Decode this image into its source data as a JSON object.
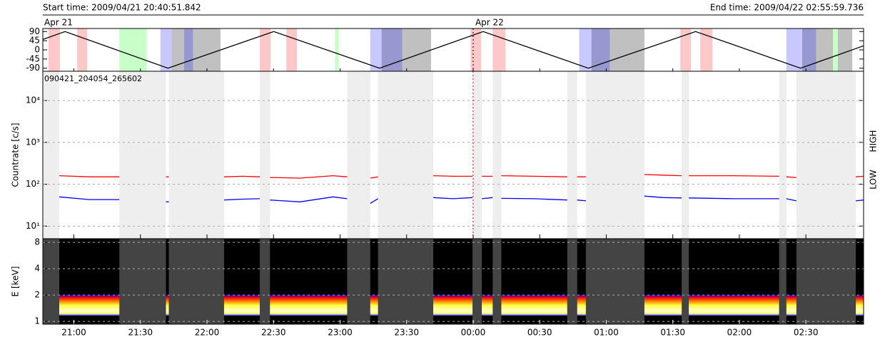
{
  "header": {
    "start": "Start time: 2009/04/21 20:40:51.842",
    "end": "End time: 2009/04/22 02:55:59.736"
  },
  "chart_data": [
    {
      "type": "line",
      "xlim": [
        1246,
        1616
      ],
      "ylim": [
        -105,
        105
      ],
      "yticks": [
        90,
        45,
        0,
        -45,
        -90
      ],
      "color": "#000000",
      "x": [
        1246,
        1256,
        1302.4,
        1350.1,
        1397.8,
        1444.5,
        1491.9,
        1540.3,
        1587.6,
        1616
      ],
      "values": [
        51,
        90,
        -90,
        90,
        -90,
        90,
        -90,
        90,
        -90,
        20
      ],
      "date_labels": [
        "Apr 21",
        "Apr 22"
      ],
      "date_line": 1440,
      "bands": [
        {
          "color": "#ffc8c8",
          "intervals": [
            [
              1248.6,
              1253.7
            ],
            [
              1261.5,
              1266.0
            ],
            [
              1343.8,
              1348.7
            ],
            [
              1355.8,
              1360.6
            ],
            [
              1438.8,
              1443.6
            ],
            [
              1448.8,
              1454.6
            ],
            [
              1533.4,
              1538.2
            ],
            [
              1542.4,
              1547.9
            ]
          ]
        },
        {
          "color": "#c8ffc8",
          "intervals": [
            [
              1280.5,
              1292.8
            ],
            [
              1377.7,
              1379.4
            ],
            [
              1602.2,
              1604.4
            ]
          ]
        },
        {
          "color": "#c8c8ff",
          "intervals": [
            [
              1299.0,
              1304.1
            ],
            [
              1393.6,
              1398.7
            ],
            [
              1487.8,
              1493.3
            ],
            [
              1581.2,
              1588.3
            ]
          ]
        },
        {
          "color": "#9898d0",
          "intervals": [
            [
              1309.6,
              1313.8
            ],
            [
              1398.7,
              1408.1
            ],
            [
              1493.3,
              1501.7
            ],
            [
              1588.3,
              1594.7
            ]
          ]
        },
        {
          "color": "#c0c0c0",
          "intervals": [
            [
              1304.1,
              1309.6
            ],
            [
              1313.8,
              1326.1
            ],
            [
              1408.1,
              1421.0
            ],
            [
              1501.7,
              1517.2
            ],
            [
              1594.7,
              1602.2
            ],
            [
              1604.4,
              1610.9
            ]
          ]
        }
      ]
    },
    {
      "type": "line",
      "log": true,
      "ylabel": "Countrate [c/s]",
      "annotation": "090421_204054_265602",
      "xlim": [
        1246,
        1616
      ],
      "ylim": [
        5,
        50000
      ],
      "yticks": [
        {
          "value": 10,
          "label": "10¹"
        },
        {
          "value": 100,
          "label": "10²"
        },
        {
          "value": 1000,
          "label": "10³"
        },
        {
          "value": 10000,
          "label": "10⁴"
        }
      ],
      "grid": true,
      "shade_color": "#eeeeee",
      "date_line": 1440,
      "date_line_color": "#ff0000",
      "shaded": [
        [
          1246,
          1253.4
        ],
        [
          1280.5,
          1301.5
        ],
        [
          1302.8,
          1327.7
        ],
        [
          1343.8,
          1348.4
        ],
        [
          1383.2,
          1393.6
        ],
        [
          1397.1,
          1422
        ],
        [
          1439.7,
          1443.9
        ],
        [
          1448.8,
          1452.7
        ],
        [
          1482.4,
          1486.9
        ],
        [
          1490.8,
          1517.2
        ],
        [
          1534,
          1537.2
        ],
        [
          1577.9,
          1581.2
        ],
        [
          1585.7,
          1612.5
        ]
      ],
      "x": [
        1253.4,
        1267,
        1280.5,
        1291,
        1301.5,
        1302.8,
        1315,
        1327.7,
        1336,
        1343.8,
        1346,
        1348.4,
        1362,
        1376.8,
        1383.2,
        1388.4,
        1393.6,
        1397.1,
        1409.5,
        1422,
        1431,
        1439.7,
        1441.8,
        1443.9,
        1448.8,
        1450.8,
        1452.7,
        1467.5,
        1482.4,
        1484.6,
        1486.9,
        1490.8,
        1504,
        1517.2,
        1525.6,
        1534,
        1535.6,
        1537.2,
        1557.5,
        1577.9,
        1579.5,
        1581.2,
        1585.7,
        1599,
        1612.5,
        1616
      ],
      "series": [
        {
          "name": "LOW",
          "color": "#ff0000",
          "values": [
            160,
            150,
            150,
            null,
            150,
            150,
            null,
            150,
            155,
            150,
            null,
            145,
            140,
            160,
            150,
            null,
            140,
            150,
            null,
            160,
            155,
            155,
            null,
            155,
            155,
            null,
            160,
            155,
            150,
            null,
            150,
            150,
            null,
            170,
            165,
            160,
            null,
            160,
            160,
            155,
            null,
            150,
            145,
            null,
            150,
            155
          ]
        },
        {
          "name": "HIGH",
          "color": "#0000ff",
          "values": [
            50,
            43,
            43,
            null,
            38,
            38,
            null,
            42,
            44,
            45,
            null,
            42,
            38,
            50,
            45,
            null,
            35,
            45,
            null,
            48,
            45,
            48,
            null,
            45,
            48,
            null,
            46,
            45,
            42,
            null,
            42,
            40,
            null,
            52,
            48,
            47,
            null,
            47,
            45,
            45,
            null,
            45,
            40,
            null,
            40,
            42
          ]
        }
      ]
    },
    {
      "type": "spectrogram",
      "log": true,
      "ylabel": "E [keV]",
      "xlim": [
        1246,
        1616
      ],
      "ylim": [
        0.93,
        8.8
      ],
      "yticks": [
        1,
        2,
        4,
        8
      ],
      "grid": true,
      "shade_color": "#444444",
      "background": "#000000",
      "xticks": [
        {
          "value": 1260,
          "label": "21:00"
        },
        {
          "value": 1290,
          "label": "21:30"
        },
        {
          "value": 1320,
          "label": "22:00"
        },
        {
          "value": 1350,
          "label": "22:30"
        },
        {
          "value": 1380,
          "label": "23:00"
        },
        {
          "value": 1410,
          "label": "23:30"
        },
        {
          "value": 1440,
          "label": "00:00"
        },
        {
          "value": 1470,
          "label": "00:30"
        },
        {
          "value": 1500,
          "label": "01:00"
        },
        {
          "value": 1530,
          "label": "01:30"
        },
        {
          "value": 1560,
          "label": "02:00"
        },
        {
          "value": 1590,
          "label": "02:30"
        }
      ]
    }
  ]
}
